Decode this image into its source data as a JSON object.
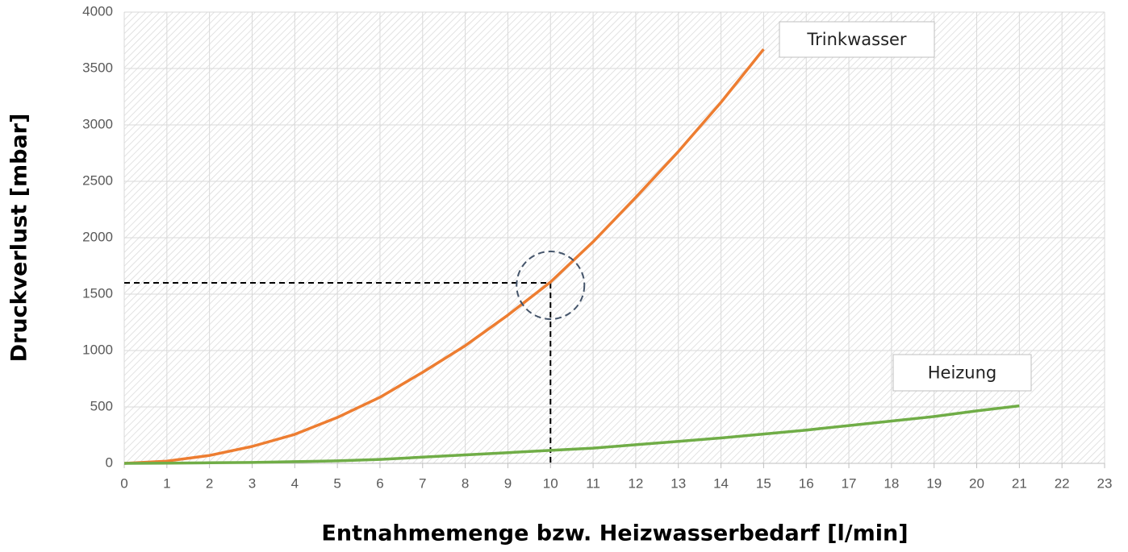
{
  "chart_data": {
    "type": "line",
    "xlabel": "Entnahmemenge bzw. Heizwasserbedarf [l/min]",
    "ylabel": "Druckverlust [mbar]",
    "xlim": [
      0,
      23
    ],
    "xticks": [
      0,
      1,
      2,
      3,
      4,
      5,
      6,
      7,
      8,
      9,
      10,
      11,
      12,
      13,
      14,
      15,
      16,
      17,
      18,
      19,
      20,
      21,
      22,
      23
    ],
    "ylim": [
      0,
      4000
    ],
    "yticks": [
      0,
      500,
      1000,
      1500,
      2000,
      2500,
      3000,
      3500,
      4000
    ],
    "grid": true,
    "reference": {
      "x": 10,
      "y": 1600
    },
    "series": [
      {
        "name": "Trinkwasser",
        "color": "#ed7d31",
        "x": [
          0,
          1,
          2,
          3,
          4,
          5,
          6,
          7,
          8,
          9,
          10,
          11,
          12,
          13,
          14,
          15
        ],
        "values": [
          0,
          20,
          70,
          150,
          257,
          407,
          586,
          807,
          1043,
          1314,
          1607,
          1964,
          2357,
          2764,
          3200,
          3671
        ]
      },
      {
        "name": "Heizung",
        "color": "#70ad47",
        "x": [
          0,
          1,
          2,
          3,
          4,
          5,
          6,
          7,
          8,
          9,
          10,
          11,
          12,
          13,
          14,
          15,
          16,
          17,
          18,
          19,
          20,
          21
        ],
        "values": [
          0,
          2,
          5,
          8,
          15,
          22,
          35,
          55,
          75,
          95,
          115,
          135,
          165,
          195,
          225,
          260,
          295,
          335,
          375,
          415,
          465,
          510
        ]
      }
    ]
  }
}
